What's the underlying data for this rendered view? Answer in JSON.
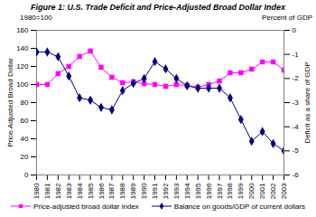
{
  "chart_data": {
    "type": "line",
    "title": "Figure 1: U.S. Trade Deficit and Price-Adjusted Broad Dollar Index",
    "annotations": [
      "1980=100",
      "Percent of GDP"
    ],
    "x": [
      1980,
      1981,
      1982,
      1983,
      1984,
      1985,
      1986,
      1987,
      1988,
      1989,
      1990,
      1991,
      1992,
      1993,
      1994,
      1995,
      1996,
      1997,
      1998,
      1999,
      2000,
      2001,
      2002,
      2003
    ],
    "xlim": [
      1980,
      2003
    ],
    "xticks": [
      1980,
      1981,
      1982,
      1983,
      1984,
      1985,
      1986,
      1987,
      1988,
      1989,
      1990,
      1991,
      1992,
      1993,
      1994,
      1995,
      1996,
      1997,
      1998,
      1999,
      2000,
      2001,
      2002,
      2003
    ],
    "ylabel": "Price-Adjusted Broad Dollar",
    "ylim": [
      0,
      160
    ],
    "yticks": [
      0,
      20,
      40,
      60,
      80,
      100,
      120,
      140,
      160
    ],
    "y2label": "Deficit as a share of GDP",
    "y2lim": [
      -6,
      0
    ],
    "y2ticks": [
      -6,
      -5,
      -4,
      -3,
      -2,
      -1,
      0
    ],
    "grid": false,
    "legend": "bottom",
    "series": [
      {
        "name": "Price-adjusted broad dollar index",
        "color": "#ff00ff",
        "marker": "square",
        "values": [
          100,
          100,
          112,
          120,
          131,
          137,
          119,
          108,
          102,
          103,
          101,
          100,
          98,
          100,
          99,
          97,
          100,
          104,
          113,
          113,
          117,
          125,
          125,
          116
        ]
      },
      {
        "name": "Balance on goods/GDP of current dollars",
        "color": "#000080",
        "marker": "diamond",
        "axis": "y2",
        "values": [
          -0.9,
          -0.9,
          -1.1,
          -1.9,
          -2.8,
          -2.9,
          -3.2,
          -3.3,
          -2.5,
          -2.2,
          -2.0,
          -1.3,
          -1.6,
          -2.0,
          -2.3,
          -2.4,
          -2.4,
          -2.4,
          -2.8,
          -3.7,
          -4.6,
          -4.2,
          -4.7,
          -5.0
        ]
      }
    ]
  }
}
